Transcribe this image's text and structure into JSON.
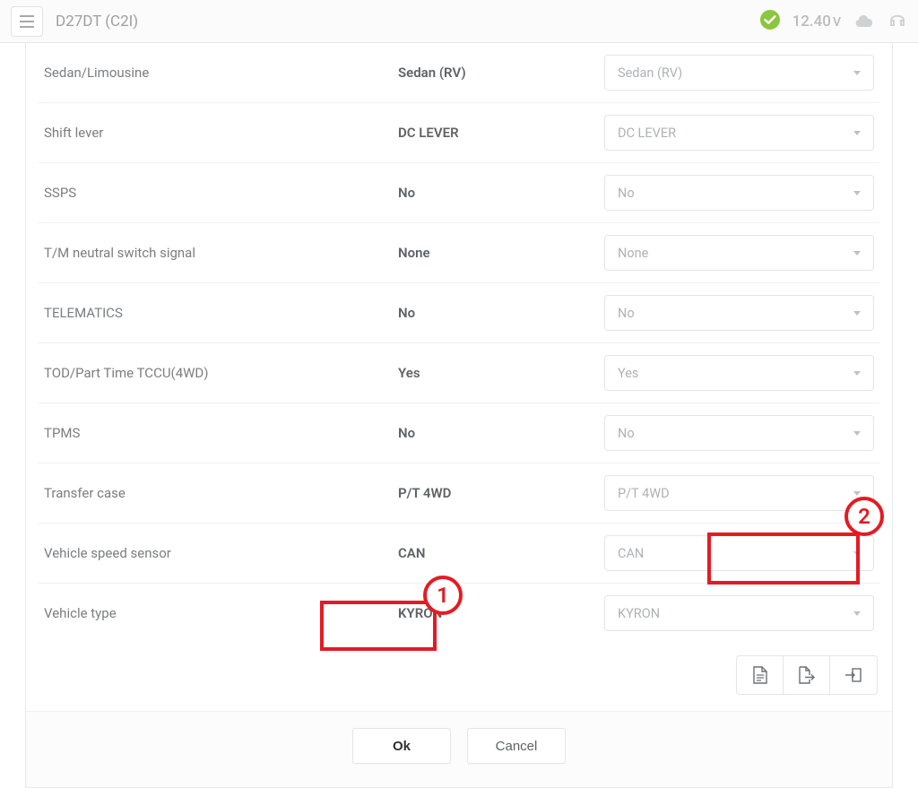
{
  "header": {
    "title": "D27DT (C2I)",
    "voltage_value": "12.40",
    "voltage_unit": "V"
  },
  "params": [
    {
      "label": "Sedan/Limousine",
      "value": "Sedan (RV)",
      "select": "Sedan (RV)"
    },
    {
      "label": "Shift lever",
      "value": "DC LEVER",
      "select": "DC LEVER"
    },
    {
      "label": "SSPS",
      "value": "No",
      "select": "No"
    },
    {
      "label": "T/M neutral switch signal",
      "value": "None",
      "select": "None"
    },
    {
      "label": "TELEMATICS",
      "value": "No",
      "select": "No"
    },
    {
      "label": "TOD/Part Time TCCU(4WD)",
      "value": "Yes",
      "select": "Yes"
    },
    {
      "label": "TPMS",
      "value": "No",
      "select": "No"
    },
    {
      "label": "Transfer case",
      "value": "P/T 4WD",
      "select": "P/T 4WD"
    },
    {
      "label": "Vehicle speed sensor",
      "value": "CAN",
      "select": "CAN"
    },
    {
      "label": "Vehicle type",
      "value": "KYRON",
      "select": "KYRON"
    }
  ],
  "footer": {
    "ok_label": "Ok",
    "cancel_label": "Cancel"
  },
  "annotations": {
    "marker1": "1",
    "marker2": "2"
  }
}
